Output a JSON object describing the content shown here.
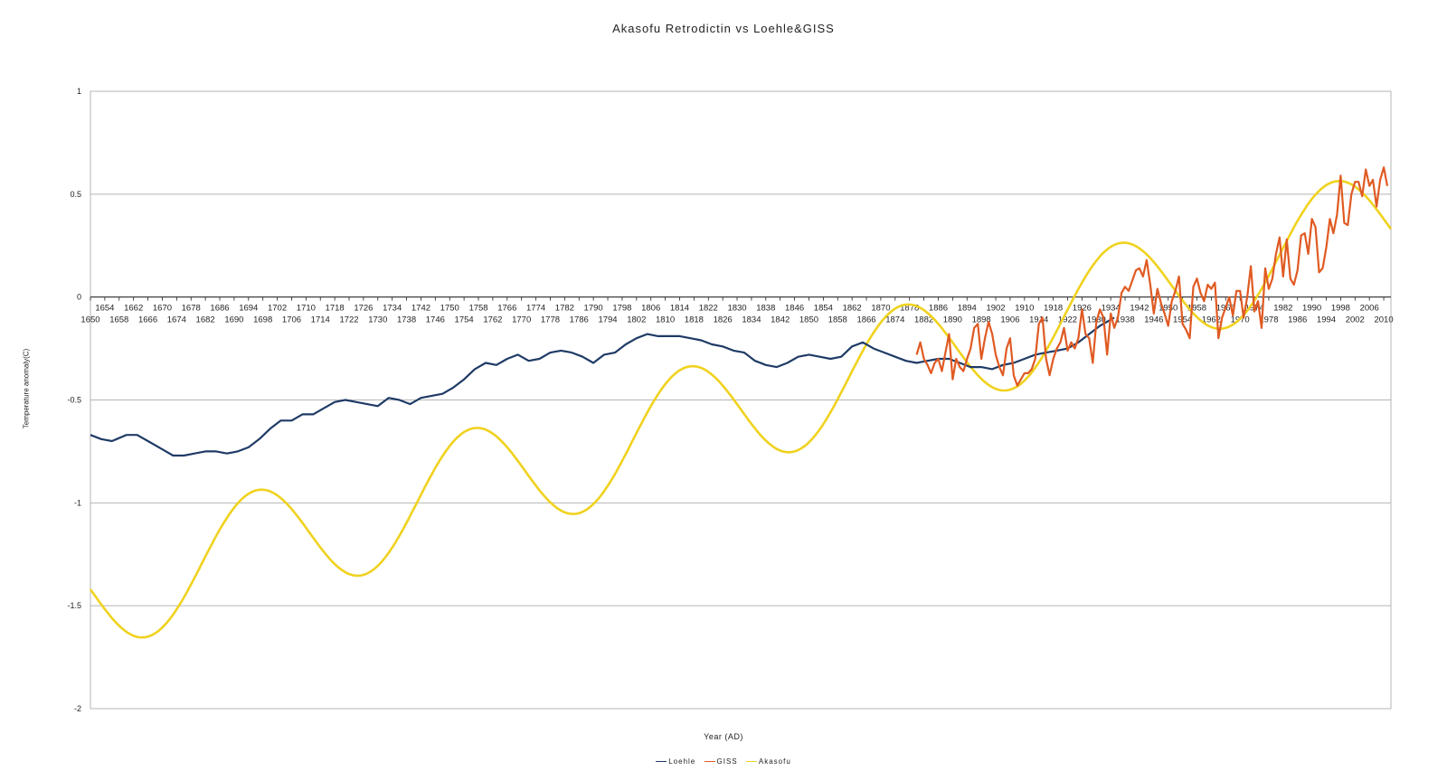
{
  "chart_data": {
    "type": "line",
    "title": "Akasofu Retrodictin vs Loehle&GISS",
    "xlabel": "Year (AD)",
    "ylabel": "Temperature anomaly(C)",
    "xlim": [
      1650,
      2012
    ],
    "ylim": [
      -2,
      1
    ],
    "yticks": [
      1,
      0.5,
      0,
      -0.5,
      -1,
      -1.5,
      -2
    ],
    "xticks_upper": [
      1654,
      1662,
      1670,
      1678,
      1686,
      1694,
      1702,
      1710,
      1718,
      1726,
      1734,
      1742,
      1750,
      1758,
      1766,
      1774,
      1782,
      1790,
      1798,
      1806,
      1814,
      1822,
      1830,
      1838,
      1846,
      1854,
      1862,
      1870,
      1878,
      1886,
      1894,
      1902,
      1910,
      1918,
      1926,
      1934,
      1942,
      1950,
      1958,
      1966,
      1974,
      1982,
      1990,
      1998,
      2006
    ],
    "xticks_lower": [
      1650,
      1658,
      1666,
      1674,
      1682,
      1690,
      1698,
      1706,
      1714,
      1722,
      1730,
      1738,
      1746,
      1754,
      1762,
      1770,
      1778,
      1786,
      1794,
      1802,
      1810,
      1818,
      1826,
      1834,
      1842,
      1850,
      1858,
      1866,
      1874,
      1882,
      1890,
      1898,
      1906,
      1914,
      1922,
      1930,
      1938,
      1946,
      1954,
      1962,
      1970,
      1978,
      1986,
      1994,
      2002,
      2010
    ],
    "grid": true,
    "legend_position": "bottom",
    "series": [
      {
        "name": "Loehle",
        "color": "#1f3b66",
        "x": [
          1650,
          1653,
          1656,
          1660,
          1663,
          1666,
          1670,
          1673,
          1676,
          1679,
          1682,
          1685,
          1688,
          1691,
          1694,
          1697,
          1700,
          1703,
          1706,
          1709,
          1712,
          1715,
          1718,
          1721,
          1724,
          1727,
          1730,
          1733,
          1736,
          1739,
          1742,
          1745,
          1748,
          1751,
          1754,
          1757,
          1760,
          1763,
          1766,
          1769,
          1772,
          1775,
          1778,
          1781,
          1784,
          1787,
          1790,
          1793,
          1796,
          1799,
          1802,
          1805,
          1808,
          1811,
          1814,
          1817,
          1820,
          1823,
          1826,
          1829,
          1832,
          1835,
          1838,
          1841,
          1844,
          1847,
          1850,
          1853,
          1856,
          1859,
          1862,
          1865,
          1868,
          1871,
          1874,
          1877,
          1880,
          1883,
          1886,
          1889,
          1892,
          1895,
          1898,
          1901,
          1904,
          1907,
          1910,
          1913,
          1916,
          1919,
          1922,
          1925,
          1928,
          1931,
          1935
        ],
        "y": [
          -0.67,
          -0.69,
          -0.7,
          -0.67,
          -0.67,
          -0.7,
          -0.74,
          -0.77,
          -0.77,
          -0.76,
          -0.75,
          -0.75,
          -0.76,
          -0.75,
          -0.73,
          -0.69,
          -0.64,
          -0.6,
          -0.6,
          -0.57,
          -0.57,
          -0.54,
          -0.51,
          -0.5,
          -0.51,
          -0.52,
          -0.53,
          -0.49,
          -0.5,
          -0.52,
          -0.49,
          -0.48,
          -0.47,
          -0.44,
          -0.4,
          -0.35,
          -0.32,
          -0.33,
          -0.3,
          -0.28,
          -0.31,
          -0.3,
          -0.27,
          -0.26,
          -0.27,
          -0.29,
          -0.32,
          -0.28,
          -0.27,
          -0.23,
          -0.2,
          -0.18,
          -0.19,
          -0.19,
          -0.19,
          -0.2,
          -0.21,
          -0.23,
          -0.24,
          -0.26,
          -0.27,
          -0.31,
          -0.33,
          -0.34,
          -0.32,
          -0.29,
          -0.28,
          -0.29,
          -0.3,
          -0.29,
          -0.24,
          -0.22,
          -0.25,
          -0.27,
          -0.29,
          -0.31,
          -0.32,
          -0.31,
          -0.3,
          -0.3,
          -0.32,
          -0.34,
          -0.34,
          -0.35,
          -0.33,
          -0.32,
          -0.3,
          -0.28,
          -0.27,
          -0.26,
          -0.25,
          -0.22,
          -0.18,
          -0.14,
          -0.1
        ]
      },
      {
        "name": "GISS",
        "color": "#e05a22",
        "x": [
          1880,
          1881,
          1882,
          1883,
          1884,
          1885,
          1886,
          1887,
          1888,
          1889,
          1890,
          1891,
          1892,
          1893,
          1894,
          1895,
          1896,
          1897,
          1898,
          1899,
          1900,
          1901,
          1902,
          1903,
          1904,
          1905,
          1906,
          1907,
          1908,
          1909,
          1910,
          1911,
          1912,
          1913,
          1914,
          1915,
          1916,
          1917,
          1918,
          1919,
          1920,
          1921,
          1922,
          1923,
          1924,
          1925,
          1926,
          1927,
          1928,
          1929,
          1930,
          1931,
          1932,
          1933,
          1934,
          1935,
          1936,
          1937,
          1938,
          1939,
          1940,
          1941,
          1942,
          1943,
          1944,
          1945,
          1946,
          1947,
          1948,
          1949,
          1950,
          1951,
          1952,
          1953,
          1954,
          1955,
          1956,
          1957,
          1958,
          1959,
          1960,
          1961,
          1962,
          1963,
          1964,
          1965,
          1966,
          1967,
          1968,
          1969,
          1970,
          1971,
          1972,
          1973,
          1974,
          1975,
          1976,
          1977,
          1978,
          1979,
          1980,
          1981,
          1982,
          1983,
          1984,
          1985,
          1986,
          1987,
          1988,
          1989,
          1990,
          1991,
          1992,
          1993,
          1994,
          1995,
          1996,
          1997,
          1998,
          1999,
          2000,
          2001,
          2002,
          2003,
          2004,
          2005,
          2006,
          2007,
          2008,
          2009,
          2010,
          2011
        ],
        "y": [
          -0.28,
          -0.22,
          -0.3,
          -0.33,
          -0.37,
          -0.32,
          -0.3,
          -0.36,
          -0.27,
          -0.18,
          -0.4,
          -0.3,
          -0.34,
          -0.36,
          -0.3,
          -0.25,
          -0.15,
          -0.13,
          -0.3,
          -0.2,
          -0.12,
          -0.18,
          -0.28,
          -0.34,
          -0.38,
          -0.25,
          -0.2,
          -0.38,
          -0.43,
          -0.4,
          -0.37,
          -0.37,
          -0.35,
          -0.3,
          -0.13,
          -0.1,
          -0.3,
          -0.38,
          -0.3,
          -0.25,
          -0.22,
          -0.15,
          -0.26,
          -0.22,
          -0.25,
          -0.2,
          -0.06,
          -0.18,
          -0.2,
          -0.32,
          -0.12,
          -0.06,
          -0.1,
          -0.28,
          -0.08,
          -0.15,
          -0.1,
          0.02,
          0.05,
          0.03,
          0.08,
          0.13,
          0.14,
          0.1,
          0.18,
          0.06,
          -0.08,
          0.04,
          -0.03,
          -0.08,
          -0.14,
          -0.02,
          0.03,
          0.1,
          -0.13,
          -0.16,
          -0.2,
          0.05,
          0.09,
          0.02,
          -0.02,
          0.06,
          0.04,
          0.07,
          -0.2,
          -0.1,
          -0.05,
          0.0,
          -0.09,
          0.03,
          0.03,
          -0.1,
          0.0,
          0.15,
          -0.07,
          -0.02,
          -0.15,
          0.14,
          0.04,
          0.09,
          0.21,
          0.29,
          0.1,
          0.28,
          0.09,
          0.06,
          0.13,
          0.3,
          0.31,
          0.21,
          0.38,
          0.34,
          0.12,
          0.14,
          0.24,
          0.38,
          0.31,
          0.4,
          0.59,
          0.36,
          0.35,
          0.5,
          0.56,
          0.56,
          0.49,
          0.62,
          0.54,
          0.57,
          0.44,
          0.57,
          0.63,
          0.54
        ]
      },
      {
        "name": "Akasofu",
        "color": "#f0d21e",
        "function": "0.005*(x-1880) - 0.3 + 0.28*sin(2*pi*(x-1921)/60)"
      }
    ]
  }
}
